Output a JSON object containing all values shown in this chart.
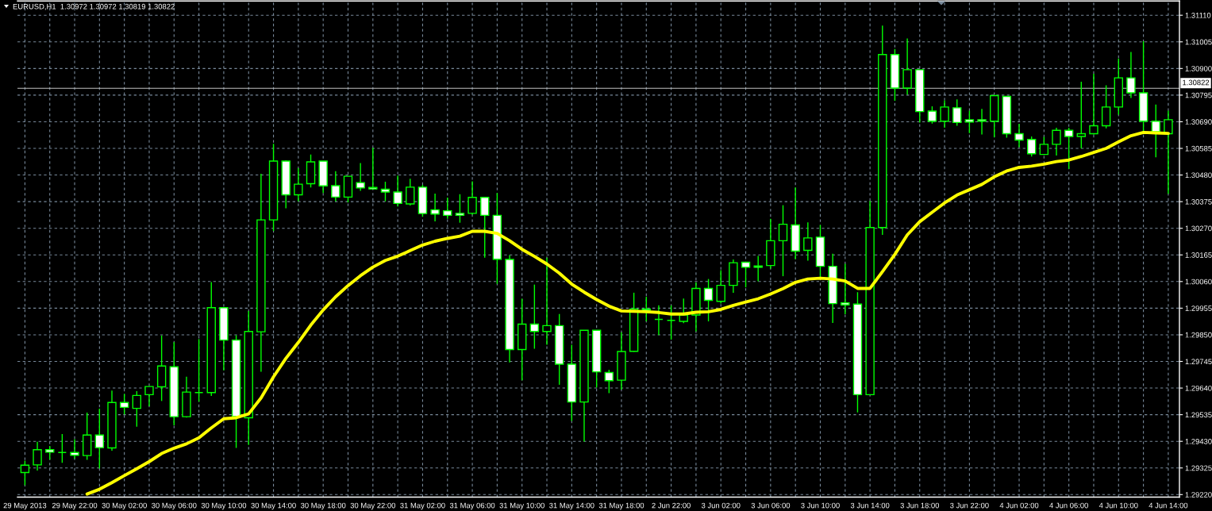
{
  "chart_data": {
    "type": "candlestick",
    "title": "EURUSD,H1  1.30972 1.30972 1.30819 1.30822",
    "categories": [
      "29 May 2013",
      null,
      null,
      null,
      "29 May 22:00",
      null,
      null,
      null,
      "30 May 02:00",
      null,
      null,
      null,
      "30 May 06:00",
      null,
      null,
      null,
      "30 May 10:00",
      null,
      null,
      null,
      "30 May 14:00",
      null,
      null,
      null,
      "30 May 18:00",
      null,
      null,
      null,
      "30 May 22:00",
      null,
      null,
      null,
      "31 May 02:00",
      null,
      null,
      null,
      "31 May 06:00",
      null,
      null,
      null,
      "31 May 10:00",
      null,
      null,
      null,
      "31 May 14:00",
      null,
      null,
      null,
      "31 May 18:00",
      null,
      null,
      null,
      "2 Jun 22:00",
      null,
      null,
      null,
      "3 Jun 02:00",
      null,
      null,
      null,
      "3 Jun 06:00",
      null,
      null,
      null,
      "3 Jun 10:00",
      null,
      null,
      null,
      "3 Jun 14:00",
      null,
      null,
      null,
      "3 Jun 18:00",
      null,
      null,
      null,
      "3 Jun 22:00",
      null,
      null,
      null,
      "4 Jun 02:00",
      null,
      null,
      null,
      "4 Jun 06:00",
      null,
      null,
      null,
      "4 Jun 10:00",
      null,
      null,
      null,
      "4 Jun 14:00"
    ],
    "series": [
      {
        "color": "#00ff00",
        "ohlc": [
          [
            1.29307,
            1.29354,
            1.29257,
            1.29336
          ],
          [
            1.29337,
            1.29428,
            1.29315,
            1.29397
          ],
          [
            1.29397,
            1.29412,
            1.29358,
            1.29387
          ],
          [
            1.29386,
            1.29459,
            1.29345,
            1.29386
          ],
          [
            1.29386,
            1.29438,
            1.29362,
            1.29375
          ],
          [
            1.29374,
            1.29543,
            1.29357,
            1.29455
          ],
          [
            1.29455,
            1.29559,
            1.29323,
            1.29405
          ],
          [
            1.29404,
            1.2963,
            1.29393,
            1.29583
          ],
          [
            1.29583,
            1.29617,
            1.29536,
            1.29564
          ],
          [
            1.2956,
            1.29628,
            1.29488,
            1.29611
          ],
          [
            1.29614,
            1.29646,
            1.29568,
            1.29646
          ],
          [
            1.29645,
            1.29847,
            1.29589,
            1.29727
          ],
          [
            1.29724,
            1.29821,
            1.29493,
            1.29527
          ],
          [
            1.29527,
            1.29685,
            1.29524,
            1.29624
          ],
          [
            1.29622,
            1.29833,
            1.29586,
            1.29622
          ],
          [
            1.29622,
            1.30058,
            1.29609,
            1.29957
          ],
          [
            1.29957,
            1.29957,
            1.2971,
            1.29829
          ],
          [
            1.29829,
            1.29848,
            1.29404,
            1.29528
          ],
          [
            1.29523,
            1.29944,
            1.29416,
            1.29863
          ],
          [
            1.29862,
            1.30485,
            1.29704,
            1.30303
          ],
          [
            1.30303,
            1.30603,
            1.30259,
            1.30535
          ],
          [
            1.30535,
            1.30538,
            1.30349,
            1.30402
          ],
          [
            1.30402,
            1.30507,
            1.30376,
            1.30444
          ],
          [
            1.30446,
            1.30561,
            1.30431,
            1.30532
          ],
          [
            1.30535,
            1.30535,
            1.30409,
            1.30437
          ],
          [
            1.30438,
            1.30495,
            1.30376,
            1.30393
          ],
          [
            1.30393,
            1.30475,
            1.30372,
            1.30475
          ],
          [
            1.3045,
            1.30527,
            1.30418,
            1.30429
          ],
          [
            1.30431,
            1.30587,
            1.30423,
            1.30425
          ],
          [
            1.30424,
            1.30454,
            1.30376,
            1.30413
          ],
          [
            1.30413,
            1.30478,
            1.30356,
            1.30368
          ],
          [
            1.30366,
            1.30465,
            1.3036,
            1.30432
          ],
          [
            1.30432,
            1.30441,
            1.30316,
            1.30328
          ],
          [
            1.30343,
            1.30407,
            1.30297,
            1.30326
          ],
          [
            1.30339,
            1.30391,
            1.30307,
            1.30321
          ],
          [
            1.30329,
            1.30404,
            1.30292,
            1.30321
          ],
          [
            1.30329,
            1.30455,
            1.30324,
            1.30392
          ],
          [
            1.30392,
            1.30392,
            1.30154,
            1.30321
          ],
          [
            1.30321,
            1.30409,
            1.30051,
            1.30148
          ],
          [
            1.30147,
            1.30164,
            1.29741,
            1.29792
          ],
          [
            1.29792,
            1.29992,
            1.29671,
            1.29892
          ],
          [
            1.29892,
            1.30048,
            1.29795,
            1.29863
          ],
          [
            1.29863,
            1.30154,
            1.29811,
            1.29886
          ],
          [
            1.29886,
            1.29932,
            1.29653,
            1.29734
          ],
          [
            1.29734,
            1.29811,
            1.2951,
            1.29585
          ],
          [
            1.29585,
            1.29868,
            1.29429,
            1.29868
          ],
          [
            1.29868,
            1.29868,
            1.29642,
            1.29704
          ],
          [
            1.29701,
            1.29712,
            1.2962,
            1.29669
          ],
          [
            1.29671,
            1.2986,
            1.29634,
            1.29784
          ],
          [
            1.29785,
            1.30016,
            1.29783,
            1.29952
          ],
          [
            1.29952,
            1.3,
            1.29903,
            1.29947
          ],
          [
            1.29911,
            1.29966,
            1.29849,
            1.29911
          ],
          [
            1.29907,
            1.29966,
            1.29831,
            1.29907
          ],
          [
            1.29903,
            1.29993,
            1.29896,
            1.29928
          ],
          [
            1.29928,
            1.30057,
            1.29863,
            1.30033
          ],
          [
            1.30033,
            1.3007,
            1.29903,
            1.29986
          ],
          [
            1.29982,
            1.30105,
            1.29973,
            1.30045
          ],
          [
            1.30045,
            1.30147,
            1.30016,
            1.30134
          ],
          [
            1.30136,
            1.30136,
            1.30037,
            1.30116
          ],
          [
            1.30121,
            1.30161,
            1.30061,
            1.30116
          ],
          [
            1.30123,
            1.30307,
            1.30111,
            1.30221
          ],
          [
            1.30221,
            1.30361,
            1.30081,
            1.30286
          ],
          [
            1.30283,
            1.30431,
            1.30148,
            1.3018
          ],
          [
            1.30183,
            1.30293,
            1.30142,
            1.30232
          ],
          [
            1.30235,
            1.30283,
            1.30078,
            1.3012
          ],
          [
            1.3012,
            1.3017,
            1.29897,
            1.29973
          ],
          [
            1.29976,
            1.3013,
            1.29931,
            1.29968
          ],
          [
            1.29971,
            1.30018,
            1.29544,
            1.29614
          ],
          [
            1.29614,
            1.30378,
            1.29614,
            1.30273
          ],
          [
            1.30273,
            1.31069,
            1.30244,
            1.30955
          ],
          [
            1.30955,
            1.30977,
            1.30773,
            1.30823
          ],
          [
            1.30823,
            1.31018,
            1.30797,
            1.30895
          ],
          [
            1.30895,
            1.30895,
            1.30687,
            1.3073
          ],
          [
            1.30732,
            1.30751,
            1.30683,
            1.30692
          ],
          [
            1.30692,
            1.30774,
            1.30666,
            1.30748
          ],
          [
            1.30745,
            1.30778,
            1.30674,
            1.30687
          ],
          [
            1.30698,
            1.30734,
            1.30645,
            1.30689
          ],
          [
            1.30698,
            1.30741,
            1.3064,
            1.30692
          ],
          [
            1.30692,
            1.30795,
            1.30629,
            1.30793
          ],
          [
            1.3079,
            1.3079,
            1.30627,
            1.30643
          ],
          [
            1.30643,
            1.30682,
            1.3059,
            1.30618
          ],
          [
            1.3062,
            1.30632,
            1.30553,
            1.30564
          ],
          [
            1.30561,
            1.3063,
            1.30559,
            1.30601
          ],
          [
            1.30601,
            1.30666,
            1.30557,
            1.30656
          ],
          [
            1.30656,
            1.30666,
            1.30504,
            1.30632
          ],
          [
            1.30632,
            1.30848,
            1.30585,
            1.30643
          ],
          [
            1.30643,
            1.30879,
            1.3064,
            1.30674
          ],
          [
            1.30674,
            1.30834,
            1.30664,
            1.30748
          ],
          [
            1.30748,
            1.30939,
            1.30718,
            1.30863
          ],
          [
            1.30863,
            1.30965,
            1.30784,
            1.30804
          ],
          [
            1.30804,
            1.31007,
            1.30653,
            1.30692
          ],
          [
            1.30692,
            1.30758,
            1.3055,
            1.30651
          ],
          [
            1.30643,
            1.30734,
            1.30406,
            1.30698
          ]
        ],
        "colors": [
          "#000000",
          "#000000",
          "#ffffff",
          "#00ff00",
          "#ffffff",
          "#000000",
          "#ffffff",
          "#000000",
          "#ffffff",
          "#000000",
          "#000000",
          "#000000",
          "#ffffff",
          "#000000",
          "#00ff00",
          "#000000",
          "#ffffff",
          "#ffffff",
          "#000000",
          "#000000",
          "#000000",
          "#ffffff",
          "#000000",
          "#000000",
          "#ffffff",
          "#ffffff",
          "#000000",
          "#ffffff",
          "#ffffff",
          "#ffffff",
          "#ffffff",
          "#000000",
          "#ffffff",
          "#ffffff",
          "#ffffff",
          "#ffffff",
          "#000000",
          "#ffffff",
          "#ffffff",
          "#ffffff",
          "#000000",
          "#ffffff",
          "#000000",
          "#ffffff",
          "#ffffff",
          "#000000",
          "#ffffff",
          "#ffffff",
          "#000000",
          "#000000",
          "#ffffff",
          "#00ff00",
          "#00ff00",
          "#000000",
          "#000000",
          "#ffffff",
          "#000000",
          "#000000",
          "#ffffff",
          "#ffffff",
          "#000000",
          "#000000",
          "#ffffff",
          "#000000",
          "#ffffff",
          "#ffffff",
          "#ffffff",
          "#ffffff",
          "#000000",
          "#000000",
          "#ffffff",
          "#000000",
          "#ffffff",
          "#ffffff",
          "#000000",
          "#ffffff",
          "#ffffff",
          "#ffffff",
          "#000000",
          "#ffffff",
          "#ffffff",
          "#ffffff",
          "#000000",
          "#000000",
          "#ffffff",
          "#000000",
          "#000000",
          "#000000",
          "#000000",
          "#ffffff",
          "#ffffff",
          "#ffffff",
          "#000000"
        ]
      },
      {
        "type": "line",
        "color": "#ffff00",
        "values": [
          null,
          null,
          null,
          null,
          null,
          1.29222,
          1.29241,
          1.29267,
          1.29295,
          1.29322,
          1.2935,
          1.29382,
          1.29403,
          1.2942,
          1.29444,
          1.29483,
          1.29519,
          1.29523,
          1.29538,
          1.29601,
          1.29684,
          1.29757,
          1.2982,
          1.29888,
          1.29948,
          1.3,
          1.30044,
          1.30083,
          1.30117,
          1.30143,
          1.3016,
          1.30182,
          1.30204,
          1.30219,
          1.3023,
          1.30239,
          1.30258,
          1.30258,
          1.3025,
          1.30221,
          1.30187,
          1.30159,
          1.30129,
          1.30093,
          1.3005,
          1.30018,
          1.29989,
          1.29963,
          1.29944,
          1.29943,
          1.29941,
          1.29938,
          1.29932,
          1.29932,
          1.29939,
          1.29941,
          1.2995,
          1.29966,
          1.29979,
          1.29992,
          1.30011,
          1.30032,
          1.30057,
          1.3007,
          1.30073,
          1.3007,
          1.30062,
          1.30033,
          1.30033,
          1.30099,
          1.30167,
          1.30244,
          1.30296,
          1.30333,
          1.3037,
          1.30401,
          1.30422,
          1.30443,
          1.30473,
          1.30496,
          1.3051,
          1.30515,
          1.30523,
          1.30533,
          1.30539,
          1.30553,
          1.30569,
          1.30585,
          1.30611,
          1.30635,
          1.30648,
          1.30646,
          1.30644
        ]
      }
    ],
    "ylim": [
      1.2921,
      1.31166
    ],
    "yticks": [
      {
        "value": 1.3111,
        "label": "1.31110"
      },
      1.31005,
      {
        "value": 1.309,
        "label": "1.30900"
      },
      1.30795,
      {
        "value": 1.3069,
        "label": "1.30690"
      },
      1.30585,
      {
        "value": 1.3048,
        "label": "1.30480"
      },
      1.30375,
      {
        "value": 1.3027,
        "label": "1.30270"
      },
      1.30165,
      {
        "value": 1.3006,
        "label": "1.30060"
      },
      1.29955,
      {
        "value": 1.2985,
        "label": "1.29850"
      },
      1.29745,
      {
        "value": 1.2964,
        "label": "1.29640"
      },
      1.29535,
      {
        "value": 1.2943,
        "label": "1.29430"
      },
      1.29325,
      {
        "value": 1.2922,
        "label": "1.29220"
      }
    ],
    "grid": true,
    "ref_lines": [
      {
        "axis": "y",
        "value": 1.30822,
        "label": "1.30822",
        "color": "#c0c0c0"
      }
    ]
  }
}
